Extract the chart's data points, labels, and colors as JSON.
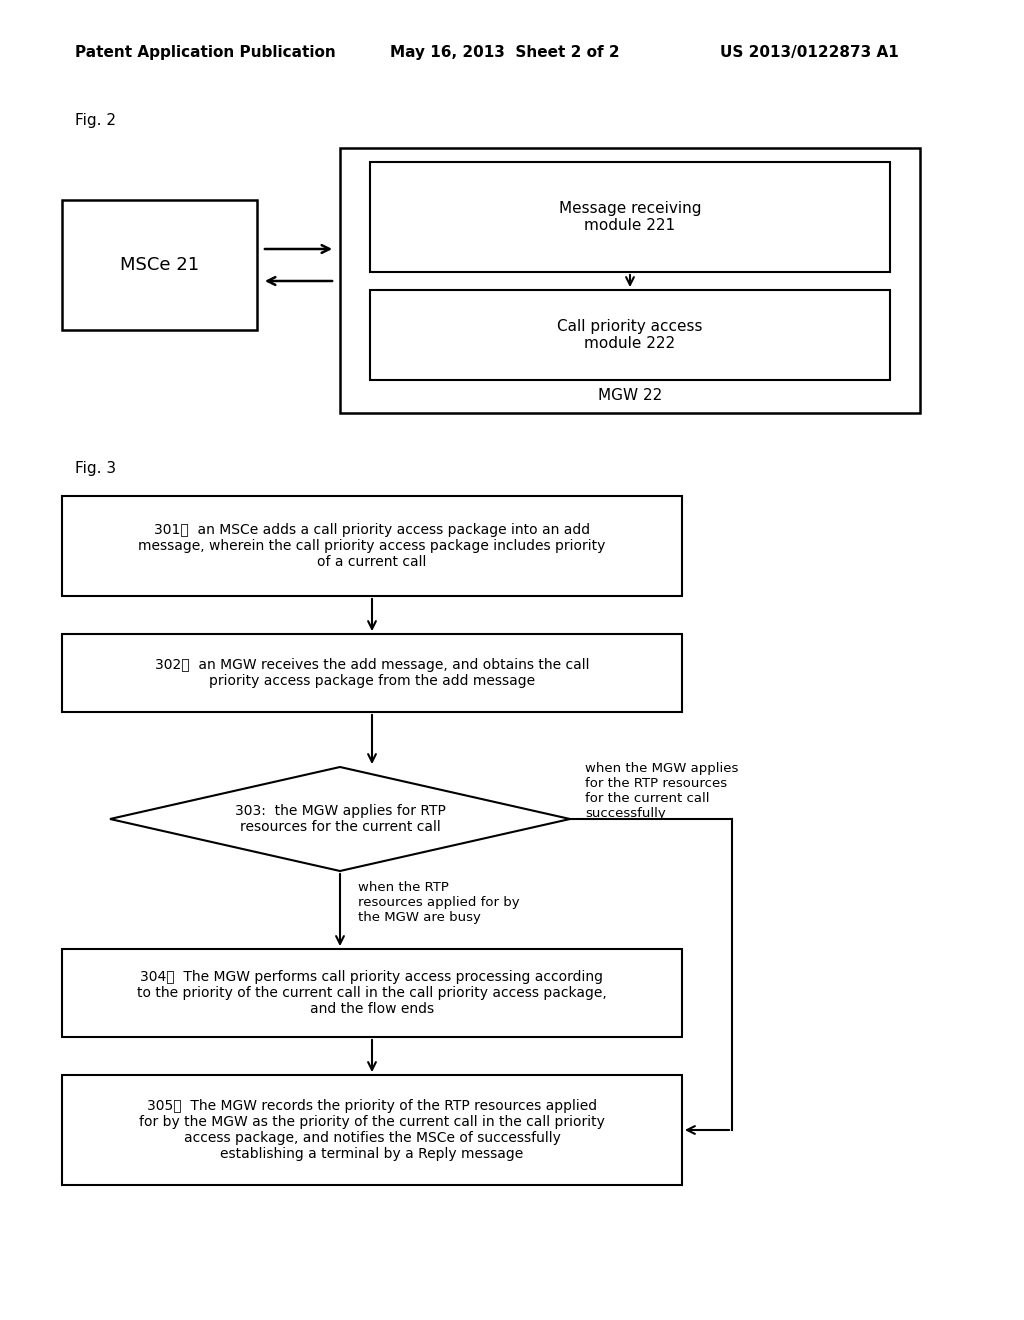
{
  "bg_color": "#ffffff",
  "header_left": "Patent Application Publication",
  "header_mid": "May 16, 2013  Sheet 2 of 2",
  "header_right": "US 2013/0122873 A1",
  "fig2_label": "Fig. 2",
  "fig3_label": "Fig. 3",
  "msce_label": "MSCe 21",
  "mgw_outer_label": "MGW 22",
  "msg_module_label": "Message receiving\nmodule 221",
  "call_module_label": "Call priority access\nmodule 222",
  "box301": "301：  an MSCe adds a call priority access package into an add\nmessage, wherein the call priority access package includes priority\nof a current call",
  "box302": "302：  an MGW receives the add message, and obtains the call\npriority access package from the add message",
  "diamond303": "303:  the MGW applies for RTP\nresources for the current call",
  "box304": "304：  The MGW performs call priority access processing according\nto the priority of the current call in the call priority access package,\nand the flow ends",
  "box305": "305：  The MGW records the priority of the RTP resources applied\nfor by the MGW as the priority of the current call in the call priority\naccess package, and notifies the MSCe of successfully\nestablishing a terminal by a Reply message",
  "label_success": "when the MGW applies\nfor the RTP resources\nfor the current call\nsuccessfully",
  "label_busy": "when the RTP\nresources applied for by\nthe MGW are busy"
}
